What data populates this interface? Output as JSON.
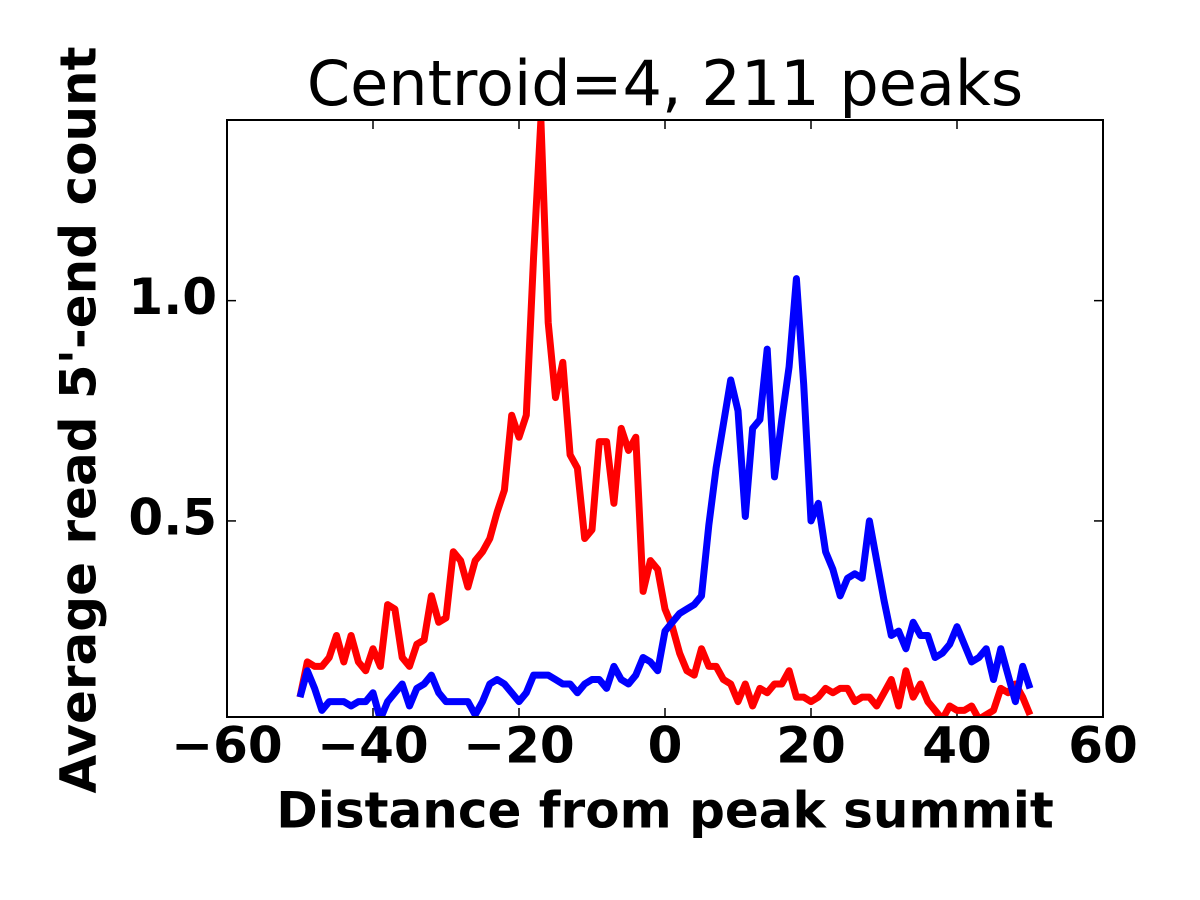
{
  "chart_data": {
    "type": "line",
    "title": "Centroid=4, 211 peaks",
    "xlabel": "Distance from peak summit",
    "ylabel": "Average read 5'-end count",
    "x": [
      -50,
      -49,
      -48,
      -47,
      -46,
      -45,
      -44,
      -43,
      -42,
      -41,
      -40,
      -39,
      -38,
      -37,
      -36,
      -35,
      -34,
      -33,
      -32,
      -31,
      -30,
      -29,
      -28,
      -27,
      -26,
      -25,
      -24,
      -23,
      -22,
      -21,
      -20,
      -19,
      -18,
      -17,
      -16,
      -15,
      -14,
      -13,
      -12,
      -11,
      -10,
      -9,
      -8,
      -7,
      -6,
      -5,
      -4,
      -3,
      -2,
      -1,
      0,
      1,
      2,
      3,
      4,
      5,
      6,
      7,
      8,
      9,
      10,
      11,
      12,
      13,
      14,
      15,
      16,
      17,
      18,
      19,
      20,
      21,
      22,
      23,
      24,
      25,
      26,
      27,
      28,
      29,
      30,
      31,
      32,
      33,
      34,
      35,
      36,
      37,
      38,
      39,
      40,
      41,
      42,
      43,
      44,
      45,
      46,
      47,
      48,
      49,
      50
    ],
    "series": [
      {
        "color": "#ff0000",
        "values": [
          0.1,
          0.18,
          0.17,
          0.17,
          0.19,
          0.24,
          0.18,
          0.24,
          0.18,
          0.16,
          0.21,
          0.17,
          0.31,
          0.3,
          0.19,
          0.17,
          0.22,
          0.23,
          0.33,
          0.27,
          0.28,
          0.43,
          0.41,
          0.35,
          0.41,
          0.43,
          0.46,
          0.52,
          0.57,
          0.74,
          0.69,
          0.74,
          1.1,
          1.41,
          0.95,
          0.78,
          0.86,
          0.65,
          0.62,
          0.46,
          0.48,
          0.68,
          0.68,
          0.54,
          0.71,
          0.66,
          0.69,
          0.34,
          0.41,
          0.39,
          0.3,
          0.26,
          0.2,
          0.16,
          0.15,
          0.21,
          0.17,
          0.17,
          0.14,
          0.13,
          0.09,
          0.13,
          0.08,
          0.12,
          0.11,
          0.13,
          0.13,
          0.16,
          0.1,
          0.1,
          0.09,
          0.1,
          0.12,
          0.11,
          0.12,
          0.12,
          0.09,
          0.1,
          0.1,
          0.08,
          0.11,
          0.14,
          0.08,
          0.16,
          0.1,
          0.13,
          0.09,
          0.07,
          0.05,
          0.08,
          0.07,
          0.07,
          0.08,
          0.05,
          0.06,
          0.07,
          0.12,
          0.11,
          0.13,
          0.1,
          0.06
        ]
      },
      {
        "color": "#0000ff",
        "values": [
          0.1,
          0.16,
          0.12,
          0.07,
          0.09,
          0.09,
          0.09,
          0.08,
          0.09,
          0.09,
          0.11,
          0.05,
          0.09,
          0.11,
          0.13,
          0.08,
          0.12,
          0.13,
          0.15,
          0.11,
          0.09,
          0.09,
          0.09,
          0.09,
          0.06,
          0.09,
          0.13,
          0.14,
          0.13,
          0.11,
          0.09,
          0.11,
          0.15,
          0.15,
          0.15,
          0.14,
          0.13,
          0.13,
          0.11,
          0.13,
          0.14,
          0.14,
          0.12,
          0.17,
          0.14,
          0.13,
          0.15,
          0.19,
          0.18,
          0.16,
          0.25,
          0.27,
          0.29,
          0.3,
          0.31,
          0.33,
          0.49,
          0.62,
          0.72,
          0.82,
          0.75,
          0.51,
          0.71,
          0.73,
          0.89,
          0.6,
          0.73,
          0.85,
          1.05,
          0.81,
          0.5,
          0.54,
          0.43,
          0.39,
          0.33,
          0.37,
          0.38,
          0.37,
          0.5,
          0.41,
          0.32,
          0.24,
          0.25,
          0.21,
          0.27,
          0.24,
          0.24,
          0.19,
          0.2,
          0.22,
          0.26,
          0.22,
          0.18,
          0.19,
          0.21,
          0.14,
          0.21,
          0.15,
          0.09,
          0.17,
          0.12
        ]
      }
    ],
    "xlim": [
      -60,
      60
    ],
    "xticks": [
      {
        "value": -60,
        "label": "−60"
      },
      {
        "value": -40,
        "label": "−40"
      },
      {
        "value": -20,
        "label": "−20"
      },
      0,
      20,
      40,
      60
    ],
    "ylim": [
      0.055,
      1.41
    ],
    "yticks": [
      0.5,
      {
        "value": 1,
        "label": "1.0"
      }
    ]
  }
}
